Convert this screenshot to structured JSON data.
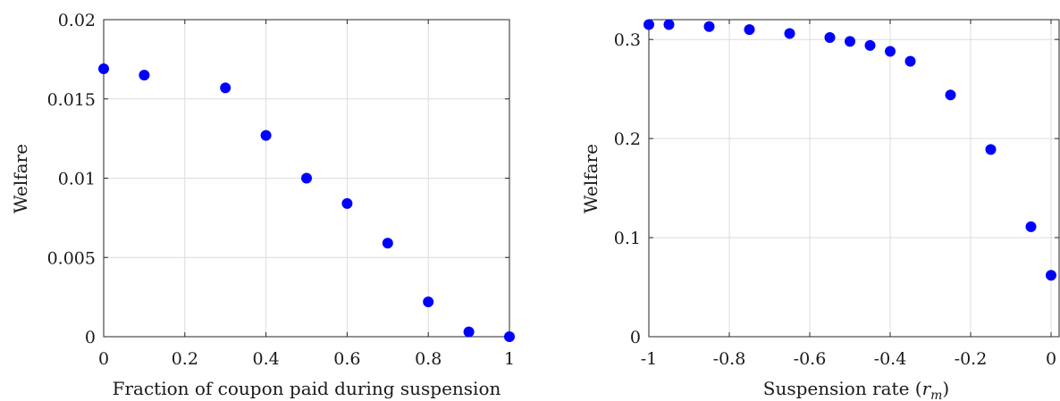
{
  "chart_data": [
    {
      "type": "scatter",
      "xlabel": "Fraction of coupon paid during suspension",
      "ylabel": "Welfare",
      "xlim": [
        0,
        1
      ],
      "ylim": [
        0,
        0.02
      ],
      "xticks": [
        0,
        0.2,
        0.4,
        0.6,
        0.8,
        1
      ],
      "yticks": [
        0,
        0.005,
        0.01,
        0.015,
        0.02
      ],
      "xtick_labels": [
        "0",
        "0.2",
        "0.4",
        "0.6",
        "0.8",
        "1"
      ],
      "ytick_labels": [
        "0",
        "0.005",
        "0.01",
        "0.015",
        "0.02"
      ],
      "grid": true,
      "color": "#0000ff",
      "points": [
        {
          "x": 0.0,
          "y": 0.0169
        },
        {
          "x": 0.1,
          "y": 0.0165
        },
        {
          "x": 0.3,
          "y": 0.0157
        },
        {
          "x": 0.4,
          "y": 0.0127
        },
        {
          "x": 0.5,
          "y": 0.01
        },
        {
          "x": 0.6,
          "y": 0.0084
        },
        {
          "x": 0.7,
          "y": 0.0059
        },
        {
          "x": 0.8,
          "y": 0.0022
        },
        {
          "x": 0.9,
          "y": 0.0003
        },
        {
          "x": 1.0,
          "y": 0.0
        }
      ]
    },
    {
      "type": "scatter",
      "xlabel_main": "Suspension rate (",
      "xlabel_var": "r",
      "xlabel_sub": "m",
      "xlabel_close": ")",
      "ylabel": "Welfare",
      "xlim": [
        -1,
        0.02
      ],
      "ylim": [
        0,
        0.32
      ],
      "xticks": [
        -1,
        -0.8,
        -0.6,
        -0.4,
        -0.2,
        0
      ],
      "yticks": [
        0,
        0.1,
        0.2,
        0.3
      ],
      "xtick_labels": [
        "-1",
        "-0.8",
        "-0.6",
        "-0.4",
        "-0.2",
        "0"
      ],
      "ytick_labels": [
        "0",
        "0.1",
        "0.2",
        "0.3"
      ],
      "grid": true,
      "color": "#0000ff",
      "points": [
        {
          "x": -1.0,
          "y": 0.315
        },
        {
          "x": -0.95,
          "y": 0.315
        },
        {
          "x": -0.85,
          "y": 0.313
        },
        {
          "x": -0.75,
          "y": 0.31
        },
        {
          "x": -0.65,
          "y": 0.306
        },
        {
          "x": -0.55,
          "y": 0.302
        },
        {
          "x": -0.5,
          "y": 0.298
        },
        {
          "x": -0.45,
          "y": 0.294
        },
        {
          "x": -0.4,
          "y": 0.288
        },
        {
          "x": -0.35,
          "y": 0.278
        },
        {
          "x": -0.25,
          "y": 0.244
        },
        {
          "x": -0.15,
          "y": 0.189
        },
        {
          "x": -0.05,
          "y": 0.111
        },
        {
          "x": 0.0,
          "y": 0.062
        }
      ]
    }
  ]
}
